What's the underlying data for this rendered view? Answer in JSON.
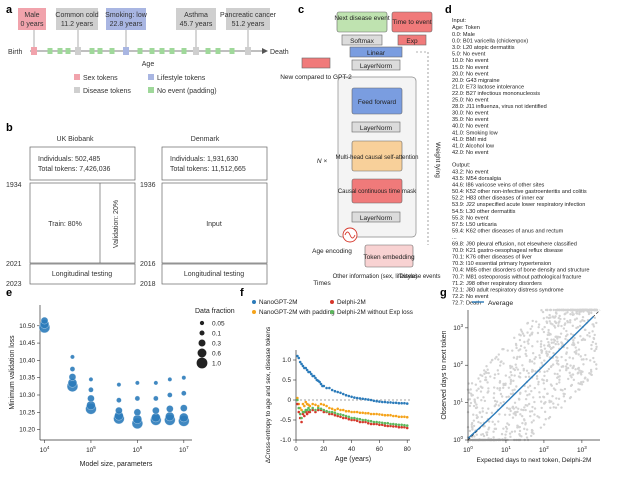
{
  "panels": {
    "a": "a",
    "b": "b",
    "c": "c",
    "d": "d",
    "e": "e",
    "f": "f",
    "g": "g"
  },
  "panel_a": {
    "events": [
      {
        "title": "Male",
        "sub": "0 years",
        "color": "#f1a3ac"
      },
      {
        "title": "Common cold",
        "sub": "11.2 years",
        "color": "#cfcfcf"
      },
      {
        "title": "Smoking: low",
        "sub": "22.8 years",
        "color": "#a9b6e2"
      },
      {
        "title": "Asthma",
        "sub": "45.7 years",
        "color": "#cfcfcf"
      },
      {
        "title": "Pancreatic cancer",
        "sub": "51.2 years",
        "color": "#cfcfcf"
      }
    ],
    "birth": "Birth",
    "death": "Death",
    "age": "Age",
    "legend": [
      {
        "label": "Sex tokens",
        "color": "#f1a3ac"
      },
      {
        "label": "Lifestyle tokens",
        "color": "#a9b6e2"
      },
      {
        "label": "Disease tokens",
        "color": "#cfcfcf"
      },
      {
        "label": "No event (padding)",
        "color": "#9fd89a"
      }
    ]
  },
  "panel_b": {
    "uk": {
      "title": "UK Biobank",
      "individuals": "Individuals: 502,485",
      "tokens": "Total tokens: 7,426,036",
      "train": "Train: 80%",
      "validation": "Validation: 20%",
      "testing": "Longitudinal testing",
      "years": [
        "1934",
        "2021",
        "2023"
      ]
    },
    "dk": {
      "title": "Denmark",
      "individuals": "Individuals: 1,931,630",
      "tokens": "Total tokens: 11,512,665",
      "input": "Input",
      "testing": "Longitudinal testing",
      "years": [
        "1936",
        "2016",
        "2018"
      ]
    }
  },
  "panel_c": {
    "next_disease": "Next disease event",
    "time_to_event": "Time to event",
    "softmax": "Softmax",
    "exp": "Exp",
    "linear": "Linear",
    "layernorm": "LayerNorm",
    "feed_forward": "Feed forward",
    "attention": "Multi-head causal self-attention",
    "mask": "Causal continuous time mask",
    "n_times": "N ×",
    "new_vs_gpt2": "New compared to GPT-2",
    "weight_tying": "Weight tying",
    "age_encoding": "Age encoding",
    "token_embedding": "Token embedding",
    "times": "Times",
    "other_info": "Other information (sex, lifestyle)",
    "disease_events": "Disease events"
  },
  "panel_d": {
    "input_header": "Input:",
    "age_token": "Age: Token",
    "input_lines": [
      "0.0: Male",
      "0.0: B01 varicella (chickenpox)",
      "3.0: L20 atopic dermatitis",
      "5.0: No event",
      "10.0: No event",
      "15.0: No event",
      "20.0: No event",
      "20.0: G43 migraine",
      "21.0: E73 lactose intolerance",
      "22.0: B27 infectious mononucleosis",
      "25.0: No event",
      "28.0: J11 influenza, virus not identified",
      "30.0: No event",
      "35.0: No event",
      "40.0: No event",
      "41.0: Smoking low",
      "41.0: BMI mid",
      "41.0: Alcohol low",
      "42.0: No event"
    ],
    "output_header": "Output:",
    "output_lines": [
      "43.2: No event",
      "43.5: M54 dorsalgia",
      "44.6: I86 varicose veins of other sites",
      "50.4: K52 other non-infective gastroenteritis and colitis",
      "52.2: H83 other diseases of inner ear",
      "53.9: J22 unspecified acute lower respiratory infection",
      "54.5: L30 other dermatitis",
      "55.3: No event",
      "57.5: L50 urticaria",
      "59.4: K62 other diseases of anus and rectum",
      "...",
      "69.8: J90 pleural effusion, not elsewhere classified",
      "70.0: K21 gastro-oesophageal reflux disease",
      "70.1: K76 other diseases of liver",
      "70.3: I10 essential primary hypertension",
      "70.4: M85 other disorders of bone density and structure",
      "70.7: M81 osteoporosis without pathological fracture",
      "71.2: J98 other respiratory disorders",
      "72.1: J80 adult respiratory distress syndrome",
      "72.2: No event",
      "72.7: Death"
    ]
  },
  "chart_data": [
    {
      "panel": "e",
      "type": "scatter",
      "xlabel": "Model size, parameters",
      "ylabel": "Minimum validation loss",
      "xscale": "log",
      "xlim": [
        8000,
        15000000
      ],
      "ylim": [
        10.17,
        10.56
      ],
      "ytick_labels": [
        "10.20",
        "10.25",
        "10.30",
        "10.35",
        "10.40",
        "10.45",
        "10.50"
      ],
      "xtick_labels": [
        "10^4",
        "10^5",
        "10^6",
        "10^7"
      ],
      "color": "#2b7bba",
      "legend_title": "Data fraction",
      "fractions": [
        "0.05",
        "0.1",
        "0.3",
        "0.6",
        "1.0"
      ],
      "points": [
        {
          "x": 10000,
          "fraction": 1.0,
          "y": 10.495
        },
        {
          "x": 10000,
          "fraction": 0.6,
          "y": 10.505
        },
        {
          "x": 10000,
          "fraction": 0.3,
          "y": 10.515
        },
        {
          "x": 40000,
          "fraction": 1.0,
          "y": 10.325
        },
        {
          "x": 40000,
          "fraction": 0.6,
          "y": 10.335
        },
        {
          "x": 40000,
          "fraction": 0.3,
          "y": 10.352
        },
        {
          "x": 40000,
          "fraction": 0.1,
          "y": 10.375
        },
        {
          "x": 40000,
          "fraction": 0.05,
          "y": 10.41
        },
        {
          "x": 100000,
          "fraction": 1.0,
          "y": 10.26
        },
        {
          "x": 100000,
          "fraction": 0.6,
          "y": 10.27
        },
        {
          "x": 100000,
          "fraction": 0.3,
          "y": 10.29
        },
        {
          "x": 100000,
          "fraction": 0.1,
          "y": 10.315
        },
        {
          "x": 100000,
          "fraction": 0.05,
          "y": 10.345
        },
        {
          "x": 400000,
          "fraction": 1.0,
          "y": 10.232
        },
        {
          "x": 400000,
          "fraction": 0.6,
          "y": 10.24
        },
        {
          "x": 400000,
          "fraction": 0.3,
          "y": 10.255
        },
        {
          "x": 400000,
          "fraction": 0.1,
          "y": 10.285
        },
        {
          "x": 400000,
          "fraction": 0.05,
          "y": 10.33
        },
        {
          "x": 1000000,
          "fraction": 1.0,
          "y": 10.218
        },
        {
          "x": 1000000,
          "fraction": 0.6,
          "y": 10.23
        },
        {
          "x": 1000000,
          "fraction": 0.3,
          "y": 10.25
        },
        {
          "x": 1000000,
          "fraction": 0.1,
          "y": 10.29
        },
        {
          "x": 1000000,
          "fraction": 0.05,
          "y": 10.335
        },
        {
          "x": 2500000,
          "fraction": 1.0,
          "y": 10.228
        },
        {
          "x": 2500000,
          "fraction": 0.6,
          "y": 10.235
        },
        {
          "x": 2500000,
          "fraction": 0.3,
          "y": 10.255
        },
        {
          "x": 2500000,
          "fraction": 0.1,
          "y": 10.29
        },
        {
          "x": 2500000,
          "fraction": 0.05,
          "y": 10.335
        },
        {
          "x": 5000000,
          "fraction": 1.0,
          "y": 10.228
        },
        {
          "x": 5000000,
          "fraction": 0.6,
          "y": 10.238
        },
        {
          "x": 5000000,
          "fraction": 0.3,
          "y": 10.26
        },
        {
          "x": 5000000,
          "fraction": 0.1,
          "y": 10.3
        },
        {
          "x": 5000000,
          "fraction": 0.05,
          "y": 10.345
        },
        {
          "x": 10000000,
          "fraction": 1.0,
          "y": 10.225
        },
        {
          "x": 10000000,
          "fraction": 0.6,
          "y": 10.235
        },
        {
          "x": 10000000,
          "fraction": 0.3,
          "y": 10.262
        },
        {
          "x": 10000000,
          "fraction": 0.1,
          "y": 10.305
        },
        {
          "x": 10000000,
          "fraction": 0.05,
          "y": 10.35
        }
      ]
    },
    {
      "panel": "f",
      "type": "scatter",
      "xlabel": "Age (years)",
      "ylabel": "ΔCross-entropy to age and sex, disease tokens",
      "xlim": [
        0,
        82
      ],
      "ylim": [
        -1.0,
        1.25
      ],
      "xtick_labels": [
        "0",
        "20",
        "40",
        "60",
        "80"
      ],
      "ytick_labels": [
        "-1.0",
        "-0.5",
        "0",
        "0.5",
        "1.0"
      ],
      "legend_position": "top",
      "series": [
        {
          "name": "NanoGPT-2M",
          "color": "#2b7bba",
          "x": [
            1,
            2,
            3,
            4,
            5,
            6,
            7,
            8,
            9,
            10,
            11,
            12,
            13,
            14,
            15,
            16,
            17,
            18,
            19,
            20,
            22,
            24,
            26,
            28,
            30,
            32,
            34,
            36,
            38,
            40,
            42,
            44,
            46,
            48,
            50,
            52,
            54,
            56,
            58,
            60,
            62,
            64,
            66,
            68,
            70,
            72,
            74,
            76,
            78,
            80
          ],
          "y": [
            1.1,
            1.05,
            0.95,
            0.9,
            0.85,
            0.8,
            0.8,
            0.75,
            0.7,
            0.7,
            0.65,
            0.6,
            0.6,
            0.55,
            0.5,
            0.48,
            0.45,
            0.4,
            0.35,
            0.35,
            0.3,
            0.3,
            0.25,
            0.22,
            0.2,
            0.18,
            0.15,
            0.12,
            0.1,
            0.08,
            0.06,
            0.05,
            0.04,
            0.03,
            0.02,
            0.01,
            0.0,
            -0.02,
            -0.03,
            -0.04,
            -0.05,
            -0.05,
            -0.06,
            -0.06,
            -0.07,
            -0.07,
            -0.08,
            -0.08,
            -0.08,
            -0.09
          ]
        },
        {
          "name": "NanoGPT-2M with padding",
          "color": "#f5a31a",
          "x": [
            1,
            2,
            3,
            4,
            5,
            6,
            7,
            8,
            9,
            10,
            12,
            14,
            16,
            18,
            20,
            22,
            24,
            26,
            28,
            30,
            32,
            34,
            36,
            38,
            40,
            42,
            44,
            46,
            48,
            50,
            52,
            54,
            56,
            58,
            60,
            62,
            64,
            66,
            68,
            70,
            72,
            74,
            76,
            78,
            80
          ],
          "y": [
            0.05,
            -0.1,
            -0.2,
            -0.25,
            -0.1,
            -0.15,
            -0.05,
            -0.1,
            -0.12,
            -0.15,
            -0.1,
            -0.12,
            -0.15,
            -0.1,
            -0.12,
            -0.15,
            -0.2,
            -0.22,
            -0.25,
            -0.22,
            -0.25,
            -0.25,
            -0.28,
            -0.28,
            -0.3,
            -0.3,
            -0.3,
            -0.32,
            -0.32,
            -0.33,
            -0.33,
            -0.35,
            -0.35,
            -0.35,
            -0.36,
            -0.37,
            -0.38,
            -0.38,
            -0.38,
            -0.4,
            -0.4,
            -0.42,
            -0.42,
            -0.42,
            -0.43
          ]
        },
        {
          "name": "Delphi-2M",
          "color": "#d6372b",
          "x": [
            1,
            2,
            3,
            4,
            5,
            6,
            7,
            8,
            9,
            10,
            12,
            14,
            16,
            18,
            20,
            22,
            24,
            26,
            28,
            30,
            32,
            34,
            36,
            38,
            40,
            42,
            44,
            46,
            48,
            50,
            52,
            54,
            56,
            58,
            60,
            62,
            64,
            66,
            68,
            70,
            72,
            74,
            76,
            78,
            80
          ],
          "y": [
            -0.1,
            -0.3,
            -0.45,
            -0.55,
            -0.35,
            -0.4,
            -0.3,
            -0.35,
            -0.3,
            -0.3,
            -0.25,
            -0.3,
            -0.25,
            -0.25,
            -0.3,
            -0.3,
            -0.35,
            -0.35,
            -0.38,
            -0.4,
            -0.42,
            -0.45,
            -0.45,
            -0.48,
            -0.5,
            -0.5,
            -0.52,
            -0.55,
            -0.55,
            -0.55,
            -0.58,
            -0.6,
            -0.6,
            -0.6,
            -0.62,
            -0.62,
            -0.64,
            -0.65,
            -0.65,
            -0.66,
            -0.66,
            -0.68,
            -0.68,
            -0.68,
            -0.7
          ]
        },
        {
          "name": "Delphi-2M without Exp loss",
          "color": "#5cb85c",
          "x": [
            1,
            2,
            3,
            4,
            5,
            6,
            7,
            8,
            9,
            10,
            12,
            14,
            16,
            18,
            20,
            22,
            24,
            26,
            28,
            30,
            32,
            34,
            36,
            38,
            40,
            42,
            44,
            46,
            48,
            50,
            52,
            54,
            56,
            58,
            60,
            62,
            64,
            66,
            68,
            70,
            72,
            74,
            76,
            78,
            80
          ],
          "y": [
            0.0,
            -0.2,
            -0.35,
            -0.45,
            -0.3,
            -0.3,
            -0.25,
            -0.25,
            -0.2,
            -0.25,
            -0.2,
            -0.25,
            -0.2,
            -0.22,
            -0.25,
            -0.28,
            -0.3,
            -0.3,
            -0.32,
            -0.35,
            -0.36,
            -0.38,
            -0.4,
            -0.42,
            -0.45,
            -0.45,
            -0.47,
            -0.48,
            -0.5,
            -0.5,
            -0.52,
            -0.53,
            -0.55,
            -0.55,
            -0.56,
            -0.57,
            -0.58,
            -0.58,
            -0.6,
            -0.6,
            -0.61,
            -0.62,
            -0.62,
            -0.63,
            -0.64
          ]
        }
      ]
    },
    {
      "panel": "g",
      "type": "scatter",
      "xlabel": "Expected days to next token, Delphi-2M",
      "ylabel": "Observed days to next token",
      "xscale": "log",
      "yscale": "log",
      "xlim": [
        1,
        3000
      ],
      "ylim": [
        1,
        3000
      ],
      "xtick_labels": [
        "10^0",
        "10^1",
        "10^2",
        "10^3"
      ],
      "ytick_labels": [
        "10^0",
        "10^1",
        "10^2",
        "10^3"
      ],
      "legend": "Average",
      "average_color": "#2b7bba",
      "cloud_color": "#d3d3d3",
      "average": {
        "x": [
          1,
          2,
          5,
          10,
          20,
          50,
          100,
          200,
          500,
          1000,
          2000
        ],
        "y": [
          1.1,
          2.1,
          5,
          10,
          20,
          50,
          100,
          200,
          500,
          1000,
          2000
        ]
      }
    }
  ]
}
